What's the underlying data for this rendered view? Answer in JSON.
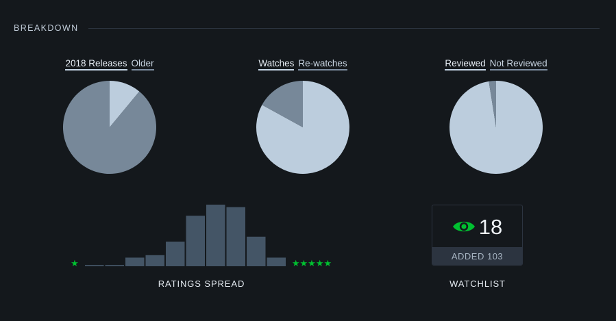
{
  "section": {
    "title": "BREAKDOWN"
  },
  "colors": {
    "background": "#14181c",
    "slice_light": "#bccddd",
    "slice_dark": "#778899",
    "bar": "#445566",
    "star": "#00c030",
    "eye": "#00c030"
  },
  "chart_data": [
    {
      "type": "pie",
      "legend": [
        "2018 Releases",
        "Older"
      ],
      "slices": [
        {
          "label": "2018 Releases",
          "value": 11,
          "color": "#bccddd"
        },
        {
          "label": "Older",
          "value": 89,
          "color": "#778899"
        }
      ]
    },
    {
      "type": "pie",
      "legend": [
        "Watches",
        "Re-watches"
      ],
      "slices": [
        {
          "label": "Watches",
          "value": 83,
          "color": "#bccddd"
        },
        {
          "label": "Re-watches",
          "value": 17,
          "color": "#778899"
        }
      ]
    },
    {
      "type": "pie",
      "legend": [
        "Reviewed",
        "Not Reviewed"
      ],
      "slices": [
        {
          "label": "Reviewed",
          "value": 97.5,
          "color": "#bccddd"
        },
        {
          "label": "Not Reviewed",
          "value": 2.5,
          "color": "#778899"
        }
      ]
    },
    {
      "type": "bar",
      "title": "RATINGS SPREAD",
      "left_label": "★",
      "right_label": "★★★★★",
      "values": [
        1,
        1,
        7,
        9,
        20,
        41,
        50,
        48,
        24,
        7
      ]
    }
  ],
  "watchlist": {
    "count": "18",
    "footer": "ADDED 103",
    "label": "WATCHLIST",
    "icon": "eye-icon"
  }
}
